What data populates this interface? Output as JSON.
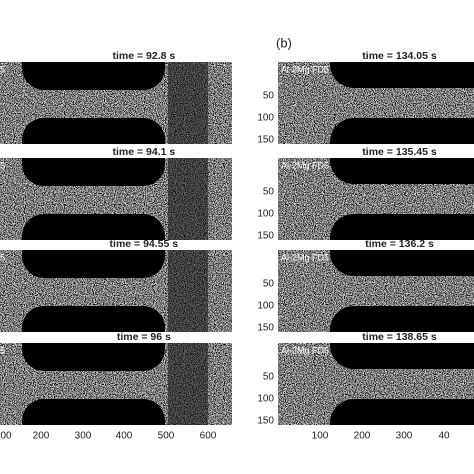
{
  "figure": {
    "label_b": "(b)",
    "left": {
      "panels": [
        {
          "title": "time = 92.8 s",
          "label": "5"
        },
        {
          "title": "time = 94.1 s",
          "label": "5"
        },
        {
          "title": "time = 94.55 s",
          "label": "5"
        },
        {
          "title": "time = 96 s",
          "label": "5"
        }
      ],
      "x_ticks": [
        "00",
        "200",
        "300",
        "400",
        "500",
        "600"
      ]
    },
    "right": {
      "panels": [
        {
          "title": "time = 134.05 s",
          "label": "Al-2Mg FD5"
        },
        {
          "title": "time = 135.45 s",
          "label": "Al-2Mg FD5"
        },
        {
          "title": "time = 136.2 s",
          "label": "Al-2Mg FD5"
        },
        {
          "title": "time = 138.65 s",
          "label": "Al-2Mg FD5"
        }
      ],
      "y_ticks": [
        "50",
        "100",
        "150"
      ],
      "x_ticks": [
        "100",
        "200",
        "300",
        "40"
      ]
    }
  }
}
